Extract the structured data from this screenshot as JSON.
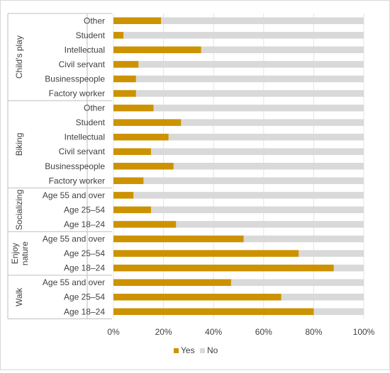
{
  "chart_data": {
    "type": "bar",
    "orientation": "horizontal",
    "stacked": "percent",
    "groups": [
      {
        "name": "Child's play",
        "categories": [
          "Other",
          "Student",
          "Intellectual",
          "Civil servant",
          "Businesspeople",
          "Factory worker"
        ],
        "yes": [
          19,
          4,
          35,
          10,
          9,
          9
        ]
      },
      {
        "name": "Biking",
        "categories": [
          "Other",
          "Student",
          "Intellectual",
          "Civil servant",
          "Businesspeople",
          "Factory worker"
        ],
        "yes": [
          16,
          27,
          22,
          15,
          24,
          12
        ]
      },
      {
        "name": "Socializing",
        "categories": [
          "Age 55 and over",
          "Age 25–54",
          "Age 18–24"
        ],
        "yes": [
          8,
          15,
          25
        ]
      },
      {
        "name": "Enjoy nature",
        "categories": [
          "Age 55 and over",
          "Age 25–54",
          "Age 18–24"
        ],
        "yes": [
          52,
          74,
          88
        ]
      },
      {
        "name": "Walk",
        "categories": [
          "Age 55 and over",
          "Age 25–54",
          "Age 18–24"
        ],
        "yes": [
          47,
          67,
          80
        ]
      }
    ],
    "series": [
      {
        "name": "Yes",
        "color": "#cc9200"
      },
      {
        "name": "No",
        "color": "#d9d9d9"
      }
    ],
    "xticks": [
      "0%",
      "20%",
      "40%",
      "60%",
      "80%",
      "100%"
    ],
    "xlim": [
      0,
      100
    ],
    "legend_position": "bottom",
    "grid": true
  }
}
